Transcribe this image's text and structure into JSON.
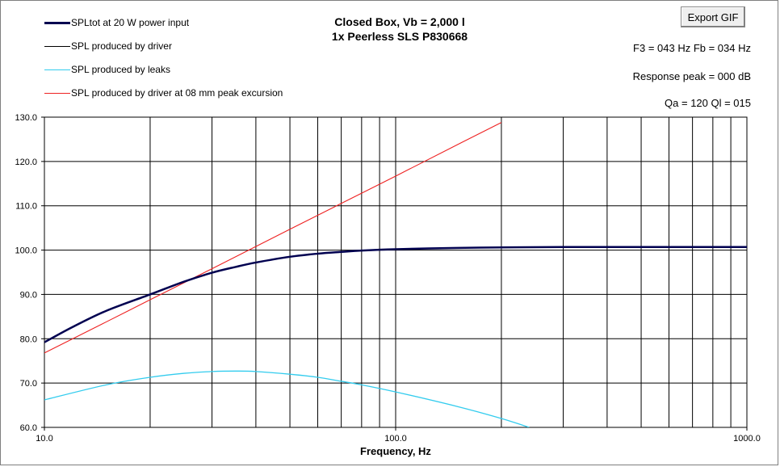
{
  "title_line1": "Closed Box, Vb = 2,000 l",
  "title_line2": "1x Peerless  SLS P830668",
  "export_button": "Export GIF",
  "info": {
    "f3_fb": "F3 = 043 Hz  Fb = 034 Hz",
    "response_peak": "Response peak = 000  dB",
    "qa_ql": "Qa = 120   Ql = 015"
  },
  "legend": [
    {
      "label": "SPLtot at 20 W power input",
      "color": "#000050"
    },
    {
      "label": "SPL produced by driver",
      "color": "#000000"
    },
    {
      "label": "SPL produced by leaks",
      "color": "#33ccee"
    },
    {
      "label": "SPL produced by driver at 08 mm peak excursion",
      "color": "#ee2222"
    }
  ],
  "chart_data": {
    "type": "line",
    "xlabel": "Frequency,  Hz",
    "ylabel": "",
    "xscale": "log",
    "xlim": [
      10,
      1000
    ],
    "ylim": [
      60,
      130
    ],
    "grid": true,
    "x_tick_labels": [
      "10.0",
      "100.0",
      "1000.0"
    ],
    "y_tick_labels": [
      "130.0",
      "120.0",
      "110.0",
      "100.0",
      "90.0",
      "80.0",
      "70.0",
      "60.0"
    ],
    "series": [
      {
        "name": "SPLtot at 20 W power input",
        "color": "#000050",
        "x": [
          10,
          12,
          15,
          20,
          25,
          30,
          35,
          40,
          50,
          60,
          70,
          80,
          100,
          150,
          200,
          300,
          500,
          1000
        ],
        "y": [
          79.2,
          82.6,
          86.3,
          90.0,
          92.9,
          94.9,
          96.2,
          97.2,
          98.5,
          99.2,
          99.6,
          99.9,
          100.2,
          100.5,
          100.6,
          100.7,
          100.7,
          100.7
        ]
      },
      {
        "name": "SPL produced by leaks",
        "color": "#33ccee",
        "x": [
          10,
          15,
          20,
          25,
          30,
          35,
          40,
          50,
          60,
          70,
          80,
          100,
          150,
          200,
          240
        ],
        "y": [
          66.2,
          69.6,
          71.3,
          72.2,
          72.6,
          72.7,
          72.6,
          72.0,
          71.3,
          70.4,
          69.6,
          68.0,
          64.7,
          62.0,
          60.0
        ]
      },
      {
        "name": "SPL produced by driver at 08 mm peak excursion",
        "color": "#ee2222",
        "x": [
          10,
          15,
          20,
          30,
          50,
          100,
          150,
          200
        ],
        "y": [
          76.8,
          83.8,
          88.8,
          95.8,
          104.7,
          116.7,
          123.8,
          128.8
        ]
      }
    ]
  }
}
